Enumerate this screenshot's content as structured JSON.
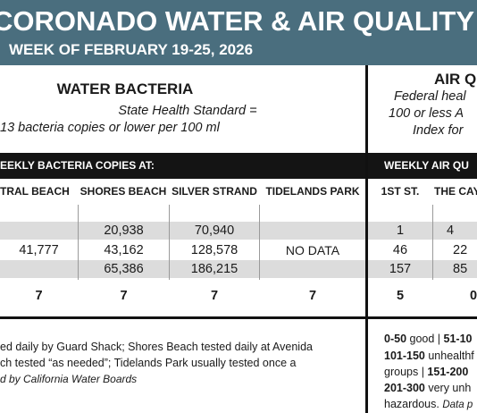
{
  "banner": {
    "title": "CORONADO WATER & AIR QUALITY R",
    "week": "WEEK OF FEBRUARY 19-25, 2026"
  },
  "water": {
    "heading": "WATER BACTERIA",
    "standard_line1": "State Health Standard  =",
    "standard_line2": "13 bacteria copies or lower per 100 ml",
    "bar_label": "EEKLY BACTERIA COPIES AT:",
    "columns": [
      "TRAL BEACH",
      "SHORES BEACH",
      "SILVER STRAND",
      "TIDELANDS PARK"
    ],
    "rows": [
      [
        "",
        "20,938",
        "70,940",
        ""
      ],
      [
        "41,777",
        "43,162",
        "128,578",
        "NO DATA"
      ],
      [
        "",
        "65,386",
        "186,215",
        ""
      ]
    ],
    "totals": [
      "7",
      "7",
      "7",
      "7"
    ],
    "notes": [
      "ed daily by Guard Shack; Shores Beach tested daily at Avenida",
      "ch tested “as needed”; Tidelands Park usually tested once a",
      "d by California Water Boards"
    ]
  },
  "air": {
    "heading": "AIR Q",
    "standard_line1": "Federal heal",
    "standard_line2": "100 or less A",
    "standard_line3": "Index for",
    "bar_label": "WEEKLY AIR QU",
    "columns": [
      "1ST ST.",
      "THE CAY"
    ],
    "rows": [
      [
        "1",
        "4"
      ],
      [
        "46",
        "22"
      ],
      [
        "157",
        "85"
      ]
    ],
    "totals": [
      "5",
      "0"
    ],
    "scale": {
      "l1_bold_a": "0-50",
      "l1_text_a": " good | ",
      "l1_bold_b": "51-10",
      "l2_bold_a": "101-150",
      "l2_text_a": " unhealthf",
      "l3_text_a": "groups | ",
      "l3_bold_a": "151-200",
      "l4_bold_a": "201-300",
      "l4_text_a": " very unh",
      "l5_text_a": "hazardous. ",
      "l5_italic": "Data p"
    }
  },
  "colors": {
    "banner": "#4a6e7e",
    "bar": "#141414",
    "shade": "#dcdcdc"
  }
}
